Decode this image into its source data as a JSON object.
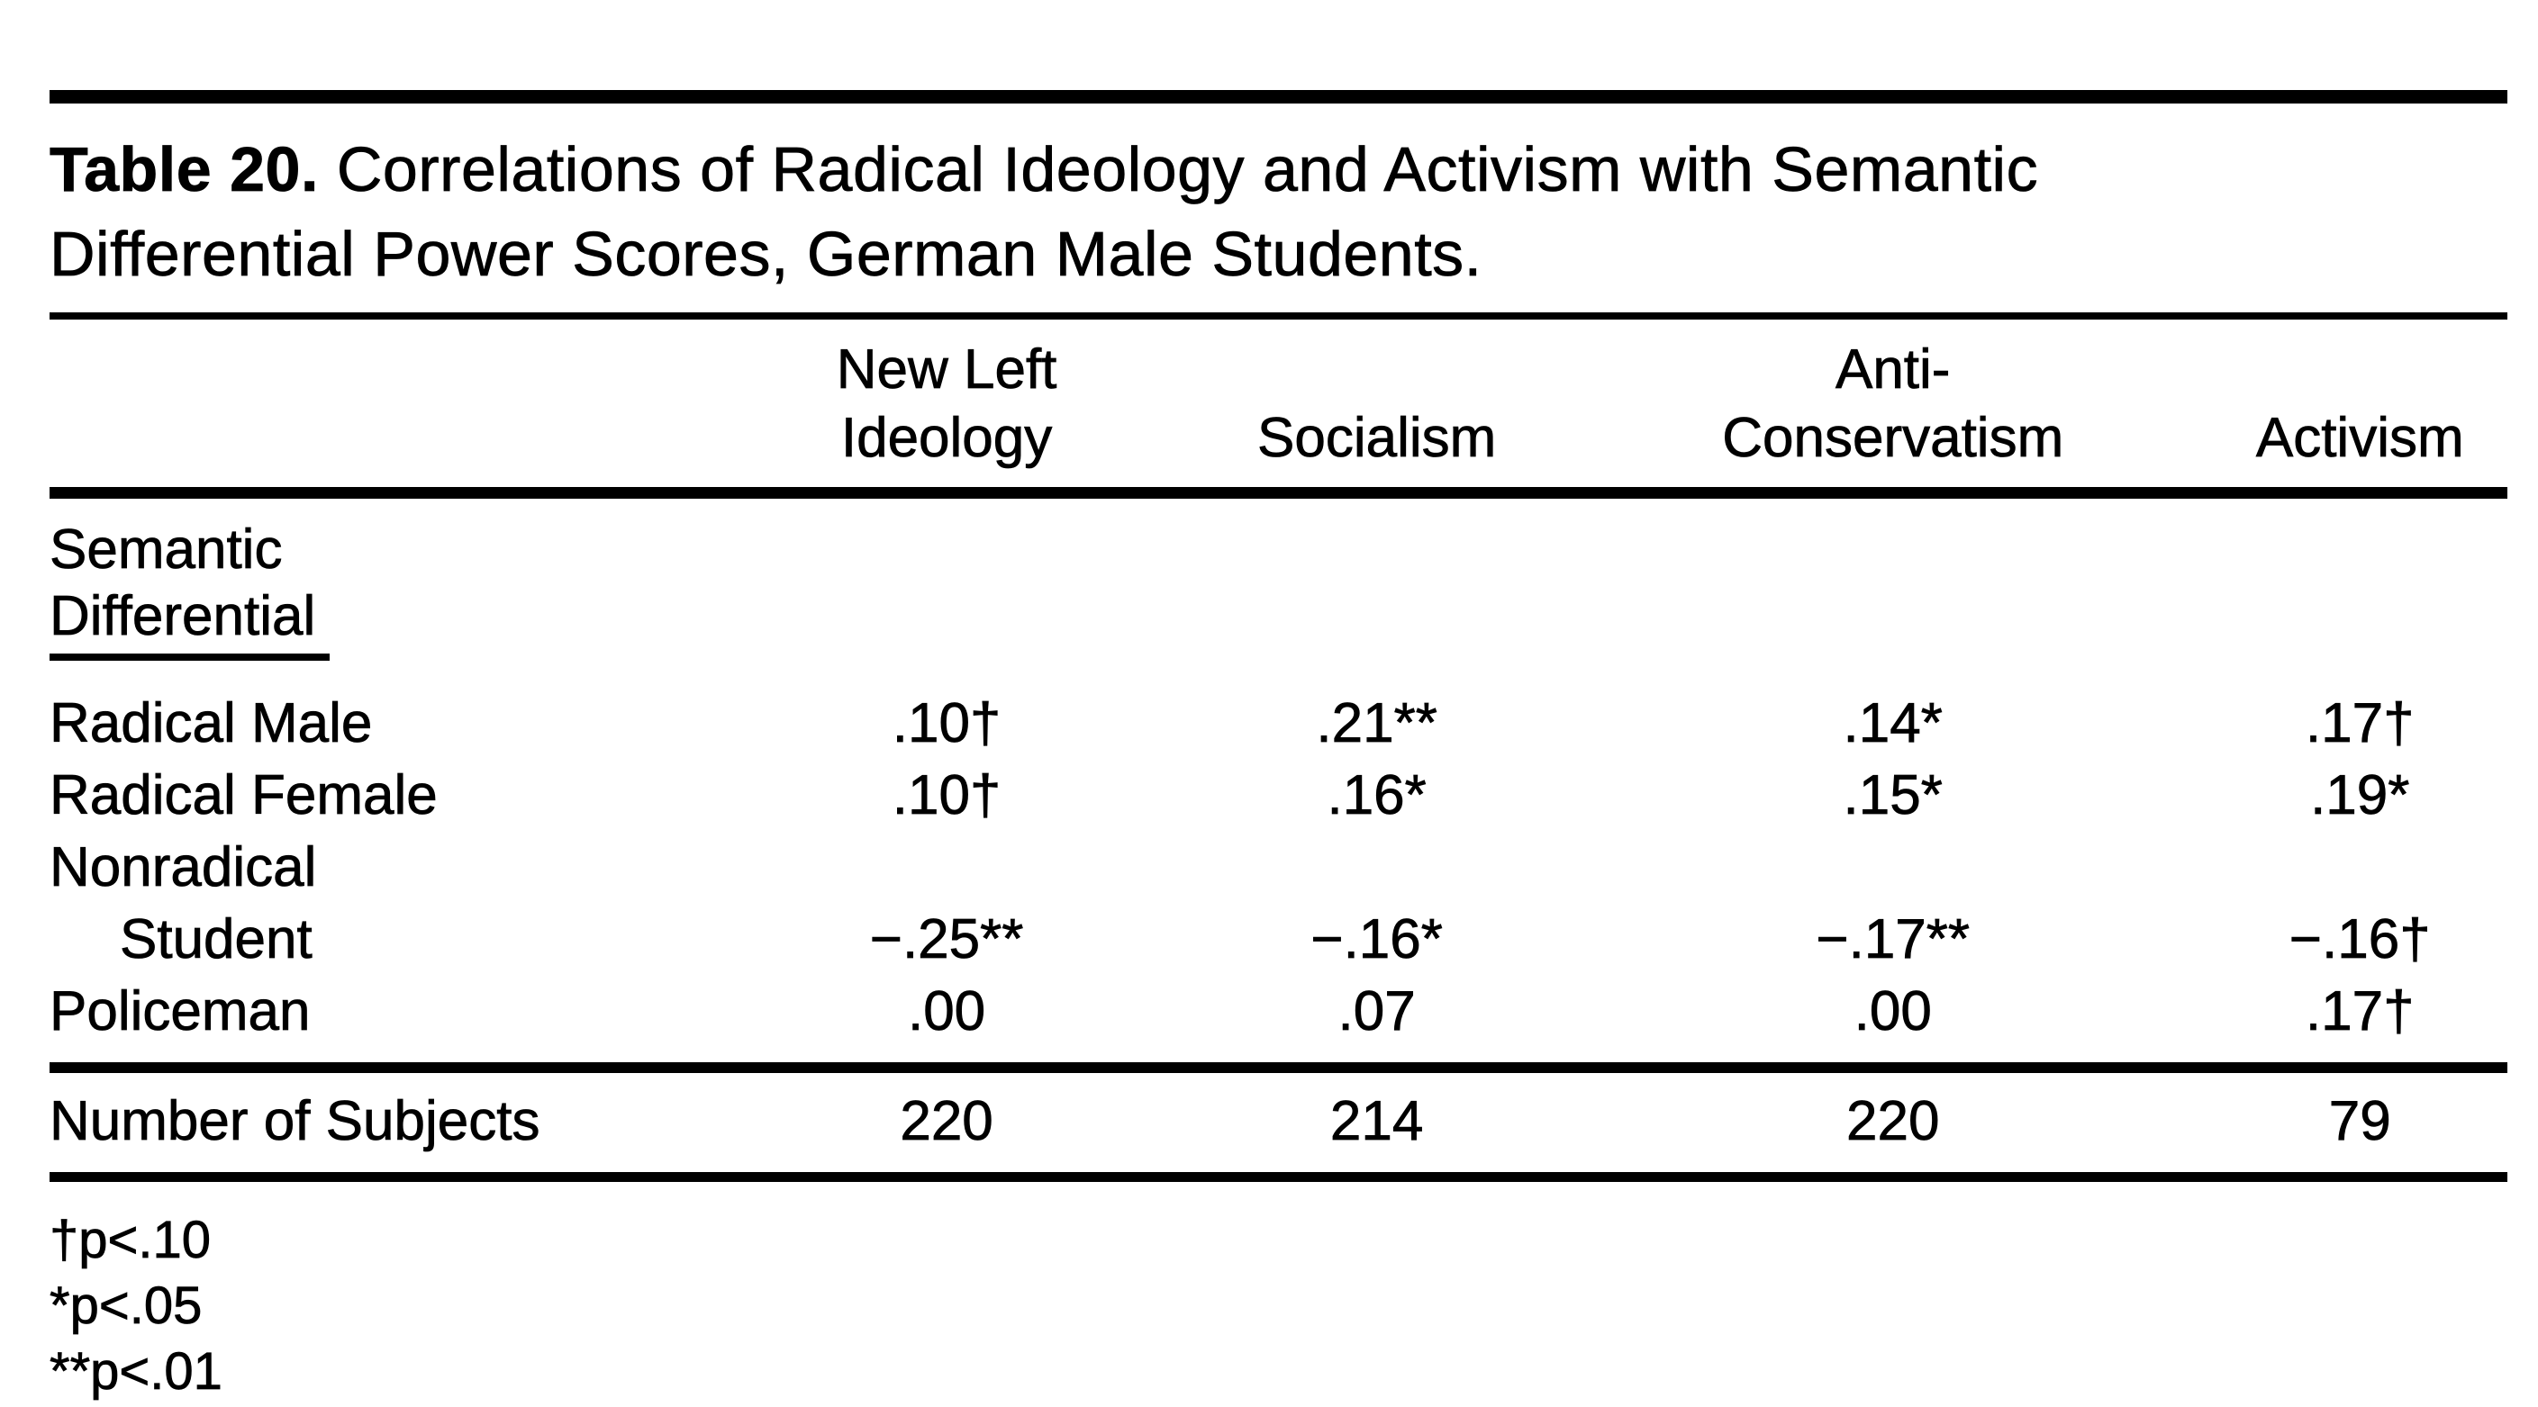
{
  "caption": {
    "number": "Table 20.",
    "line1_rest": " Correlations of Radical Ideology and Activism with Semantic",
    "line2": "Differential Power Scores, German Male Students."
  },
  "header": {
    "columns": [
      {
        "line1": "New Left",
        "line2": "Ideology"
      },
      {
        "line1": "",
        "line2": "Socialism"
      },
      {
        "line1": "Anti-",
        "line2": "Conservatism"
      },
      {
        "line1": "",
        "line2": "Activism"
      }
    ]
  },
  "section_label": {
    "line1": "Semantic",
    "line2": "Differential"
  },
  "rows": [
    {
      "label": "Radical Male",
      "values": [
        ".10†",
        ".21**",
        ".14*",
        ".17†"
      ]
    },
    {
      "label": "Radical Female",
      "values": [
        ".10†",
        ".16*",
        ".15*",
        ".19*"
      ]
    },
    {
      "label": "Nonradical",
      "values": [
        "",
        "",
        "",
        ""
      ]
    },
    {
      "label": "Student",
      "values": [
        "−.25**",
        "−.16*",
        "−.17**",
        "−.16†"
      ]
    },
    {
      "label": "Policeman",
      "values": [
        ".00",
        ".07",
        ".00",
        ".17†"
      ]
    }
  ],
  "summary": {
    "label": "Number of Subjects",
    "values": [
      "220",
      "214",
      "220",
      "79"
    ]
  },
  "footnotes": [
    "†p<.10",
    "*p<.05",
    "**p<.01"
  ]
}
